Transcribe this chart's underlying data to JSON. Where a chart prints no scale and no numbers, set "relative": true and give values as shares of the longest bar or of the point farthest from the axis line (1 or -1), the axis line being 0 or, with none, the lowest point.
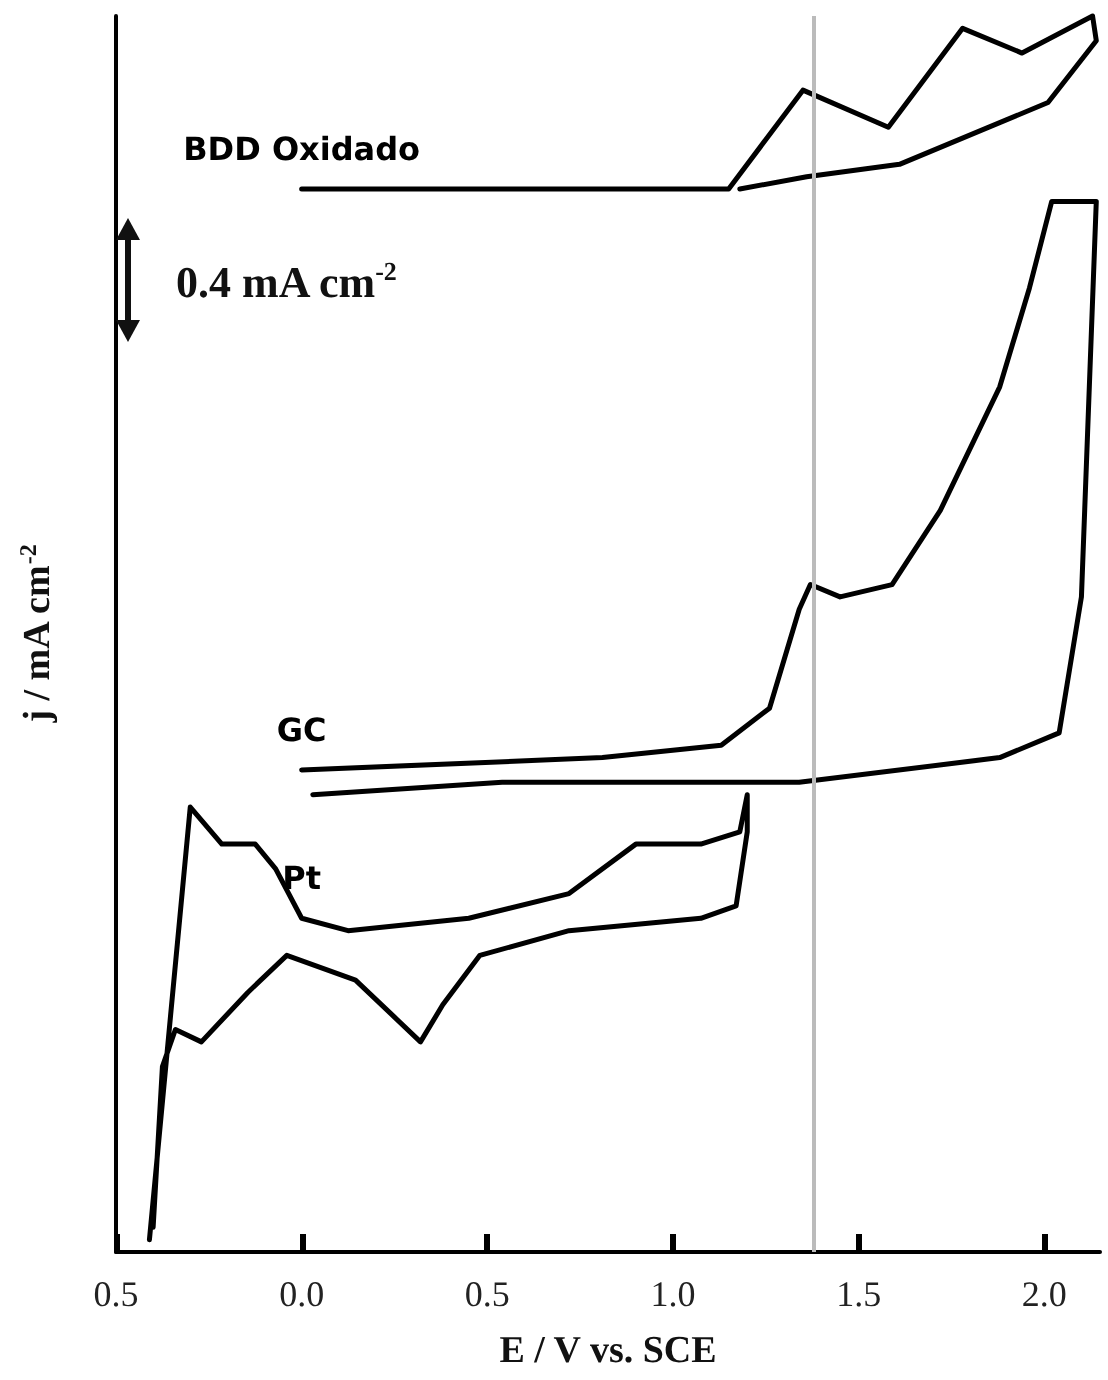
{
  "chart_data": {
    "type": "line",
    "relative": true,
    "xlabel": "E / V vs. SCE",
    "ylabel": "j / mA cm$^{-2}$",
    "tick_labels": "x",
    "grid": false,
    "legend": false,
    "marker": "none",
    "line_style": "solid",
    "xlim": [
      -0.5,
      2.15
    ],
    "xticks": [
      {
        "value": -0.5,
        "label": "0.5"
      },
      {
        "value": 0,
        "label": "0.0"
      },
      {
        "value": 0.5,
        "label": "0.5"
      },
      {
        "value": 1,
        "label": "1.0"
      },
      {
        "value": 1.5,
        "label": "1.5"
      },
      {
        "value": 2,
        "label": "2.0"
      }
    ],
    "annotations": [
      "0.4 mA cm$^{-2}$"
    ],
    "ref_lines": [
      {
        "axis": "x",
        "value": 1.38,
        "label": null,
        "color": "#bbbbbb"
      }
    ],
    "series": [
      {
        "name": "BDD Oxidado",
        "color": "#000000",
        "x": [
          0,
          1.15,
          1.35,
          1.58,
          1.78,
          1.94,
          2.13,
          2.14,
          2.01,
          1.61,
          1.36,
          1.18
        ],
        "values": [
          0.86,
          0.86,
          0.94,
          0.91,
          0.99,
          0.97,
          1.0,
          0.98,
          0.93,
          0.88,
          0.87,
          0.86
        ]
      },
      {
        "name": "GC",
        "color": "#000000",
        "x": [
          0,
          0.81,
          1.13,
          1.26,
          1.34,
          1.37,
          1.45,
          1.59,
          1.72,
          1.88,
          1.96,
          2.02,
          2.14,
          2.1,
          2.04,
          1.88,
          1.34,
          0.54,
          0.03
        ],
        "values": [
          0.39,
          0.4,
          0.41,
          0.44,
          0.52,
          0.54,
          0.53,
          0.54,
          0.6,
          0.7,
          0.78,
          0.85,
          0.85,
          0.53,
          0.42,
          0.4,
          0.38,
          0.38,
          0.37
        ]
      },
      {
        "name": "Pt",
        "color": "#000000",
        "x": [
          -0.41,
          -0.3,
          -0.215,
          -0.125,
          -0.07,
          0,
          0.125,
          0.45,
          0.72,
          0.9,
          1.075,
          1.18,
          1.2,
          1.2,
          1.17,
          1.075,
          0.72,
          0.48,
          0.38,
          0.32,
          0.25,
          0.145,
          -0.04,
          -0.145,
          -0.27,
          -0.34,
          -0.375,
          -0.4
        ],
        "values": [
          0.01,
          0.36,
          0.33,
          0.33,
          0.31,
          0.27,
          0.26,
          0.27,
          0.29,
          0.33,
          0.33,
          0.34,
          0.37,
          0.34,
          0.28,
          0.27,
          0.26,
          0.24,
          0.2,
          0.17,
          0.19,
          0.22,
          0.24,
          0.21,
          0.17,
          0.18,
          0.15,
          0.02
        ]
      }
    ]
  }
}
